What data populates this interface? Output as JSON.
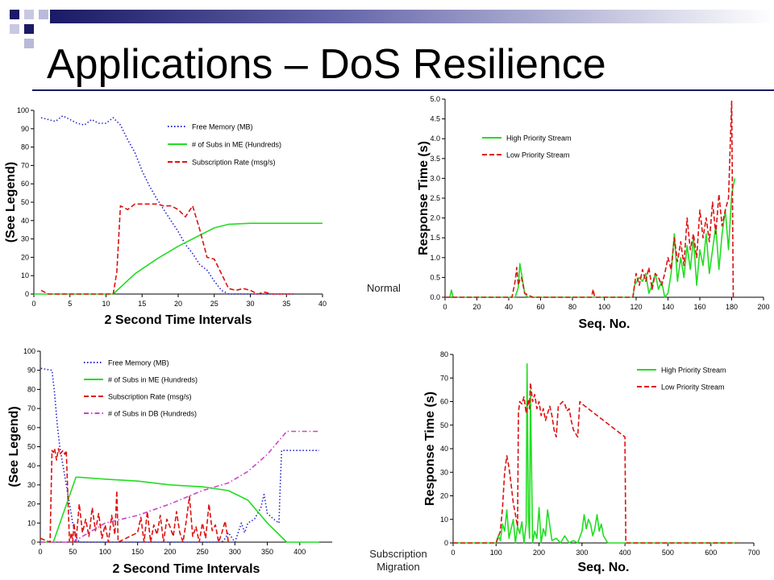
{
  "slide": {
    "title": "Applications – DoS Resilience",
    "label_normal": "Normal",
    "label_migration_line1": "Subscription",
    "label_migration_line2": "Migration"
  },
  "colors": {
    "blue": "#2323d0",
    "green": "#22dd22",
    "red": "#dd1111",
    "purple": "#cc44cc",
    "accent_dark": "#1a1a66",
    "accent_light": "#9999cc"
  },
  "chart_data": [
    {
      "id": "top-left",
      "type": "line",
      "xlabel": "2 Second Time Intervals",
      "ylabel": "(See Legend)",
      "xlim": [
        0,
        40
      ],
      "ylim": [
        0,
        100
      ],
      "xticks": [
        0,
        5,
        10,
        15,
        20,
        25,
        30,
        35,
        40
      ],
      "yticks": [
        0,
        10,
        20,
        30,
        40,
        50,
        60,
        70,
        80,
        90,
        100
      ],
      "legend_position": "top-right",
      "series": [
        {
          "name": "Free Memory (MB)",
          "color": "#2323d0",
          "dash": "dot",
          "x": [
            1,
            2,
            3,
            4,
            5,
            6,
            7,
            8,
            9,
            10,
            11,
            12,
            13,
            14,
            15,
            16,
            17,
            18,
            19,
            20,
            21,
            22,
            23,
            24,
            25,
            26,
            27,
            28,
            29,
            30,
            31,
            32,
            33,
            34,
            35,
            36
          ],
          "y": [
            96,
            95,
            94,
            97,
            95,
            93,
            92,
            95,
            93,
            93,
            96,
            92,
            84,
            77,
            67,
            59,
            52,
            46,
            40,
            34,
            27,
            22,
            16,
            13,
            7,
            2,
            0,
            0,
            0,
            0,
            0,
            0,
            0,
            0,
            0,
            0
          ]
        },
        {
          "name": "# of Subs in ME (Hundreds)",
          "color": "#22dd22",
          "dash": "solid",
          "x": [
            0,
            11,
            14,
            17,
            20,
            23,
            25,
            27,
            30,
            35,
            40
          ],
          "y": [
            0,
            0,
            11,
            19,
            26,
            32,
            36,
            38,
            38.5,
            38.5,
            38.5
          ]
        },
        {
          "name": "Subscription Rate (msg/s)",
          "color": "#dd1111",
          "dash": "dash",
          "x": [
            1,
            2,
            3,
            11,
            11.5,
            12,
            13,
            14,
            15,
            16,
            17,
            18,
            19,
            20,
            21,
            22,
            23,
            24,
            25,
            26,
            27,
            28,
            29,
            30,
            31,
            32,
            33,
            34,
            35,
            36
          ],
          "y": [
            2,
            0,
            0,
            0,
            12,
            48,
            46,
            49,
            49,
            49,
            49,
            48,
            48,
            46,
            42,
            48,
            35,
            20,
            19,
            11,
            3,
            2,
            3,
            2,
            0,
            1,
            0,
            0,
            0,
            0
          ]
        }
      ]
    },
    {
      "id": "top-right",
      "type": "line",
      "xlabel": "Seq. No.",
      "ylabel": "Response Time (s)",
      "xlim": [
        0,
        200
      ],
      "ylim": [
        0,
        5
      ],
      "xticks": [
        0,
        20,
        40,
        60,
        80,
        100,
        120,
        140,
        160,
        180,
        200
      ],
      "yticks": [
        0.0,
        0.5,
        1.0,
        1.5,
        2.0,
        2.5,
        3.0,
        3.5,
        4.0,
        4.5,
        5.0
      ],
      "legend_position": "top-left",
      "series": [
        {
          "name": "High Priority Stream",
          "color": "#22dd22",
          "dash": "solid",
          "x": [
            0,
            3,
            4,
            5,
            8,
            40,
            44,
            46,
            47,
            48,
            50,
            52,
            55,
            90,
            118,
            119,
            122,
            124,
            126,
            128,
            130,
            132,
            134,
            136,
            138,
            140,
            142,
            144,
            146,
            148,
            150,
            152,
            154,
            156,
            158,
            160,
            162,
            164,
            166,
            168,
            170,
            172,
            174,
            176,
            178,
            180,
            182
          ],
          "y": [
            0,
            0,
            0.18,
            0,
            0,
            0,
            0,
            0.25,
            0.85,
            0.6,
            0.1,
            0,
            0,
            0,
            0,
            0.3,
            0.5,
            0.4,
            0.6,
            0.1,
            0.3,
            0.6,
            0.2,
            0.4,
            0,
            0.1,
            0.6,
            1.6,
            0.4,
            1.0,
            0.5,
            1.3,
            0.7,
            1.5,
            0.3,
            1.2,
            0.8,
            1.6,
            0.6,
            1.2,
            1.8,
            0.7,
            1.6,
            2.2,
            1.2,
            2.6,
            3.0
          ]
        },
        {
          "name": "Low Priority Stream",
          "color": "#dd1111",
          "dash": "dash",
          "x": [
            0,
            40,
            42,
            44,
            45,
            46,
            47,
            48,
            50,
            55,
            92,
            93,
            94,
            100,
            118,
            120,
            122,
            124,
            126,
            128,
            130,
            132,
            134,
            136,
            138,
            140,
            142,
            144,
            146,
            148,
            150,
            152,
            154,
            156,
            158,
            160,
            162,
            164,
            166,
            168,
            170,
            172,
            174,
            176,
            178,
            180,
            181
          ],
          "y": [
            0,
            0,
            0,
            0.4,
            0.75,
            0.3,
            0.45,
            0.5,
            0.1,
            0,
            0,
            0.2,
            0,
            0,
            0,
            0.6,
            0.3,
            0.7,
            0.4,
            0.75,
            0.2,
            0.6,
            0.5,
            0.3,
            0.6,
            1.0,
            0.7,
            1.5,
            0.9,
            1.4,
            0.8,
            2.0,
            1.2,
            1.6,
            1.0,
            2.2,
            1.5,
            2.0,
            1.4,
            2.4,
            1.6,
            2.6,
            1.8,
            2.2,
            2.5,
            4.95,
            0
          ]
        }
      ]
    },
    {
      "id": "bottom-left",
      "type": "line",
      "xlabel": "2 Second Time Intervals",
      "ylabel": "(See Legend)",
      "xlim": [
        0,
        450
      ],
      "ylim": [
        0,
        100
      ],
      "xticks": [
        0,
        50,
        100,
        150,
        200,
        250,
        300,
        350,
        400
      ],
      "yticks": [
        0,
        10,
        20,
        30,
        40,
        50,
        60,
        70,
        80,
        90,
        100
      ],
      "legend_position": "top-right",
      "series": [
        {
          "name": "Free Memory (MB)",
          "color": "#2323d0",
          "dash": "dot",
          "x": [
            1,
            18,
            22,
            26,
            30,
            35,
            40,
            45,
            50,
            55,
            60,
            70,
            80,
            100,
            150,
            200,
            250,
            280,
            285,
            290,
            300,
            305,
            310,
            315,
            320,
            330,
            340,
            345,
            350,
            360,
            368,
            370,
            372,
            380,
            400,
            430
          ],
          "y": [
            91,
            90,
            78,
            62,
            50,
            40,
            30,
            20,
            10,
            3,
            0,
            0,
            0,
            0,
            0,
            0,
            0,
            0,
            2,
            5,
            0,
            5,
            10,
            5,
            10,
            12,
            18,
            25,
            15,
            12,
            10,
            30,
            48,
            48,
            48,
            48
          ]
        },
        {
          "name": "# of Subs in ME (Hundreds)",
          "color": "#22dd22",
          "dash": "solid",
          "x": [
            0,
            20,
            55,
            60,
            100,
            150,
            200,
            250,
            290,
            320,
            330,
            350,
            380,
            430
          ],
          "y": [
            0,
            0,
            34,
            34,
            33,
            32,
            30,
            29,
            27,
            22,
            18,
            10,
            0,
            0
          ]
        },
        {
          "name": "Subscription Rate (msg/s)",
          "color": "#dd1111",
          "dash": "dash",
          "x": [
            0,
            15,
            18,
            20,
            22,
            25,
            28,
            30,
            35,
            38,
            40,
            45,
            48,
            50,
            52,
            55,
            60,
            65,
            70,
            75,
            80,
            85,
            90,
            95,
            100,
            105,
            110,
            115,
            118,
            120,
            150,
            155,
            160,
            165,
            170,
            175,
            180,
            185,
            190,
            195,
            200,
            205,
            210,
            215,
            220,
            225,
            230,
            235,
            240,
            245,
            250,
            255,
            260,
            265,
            270,
            275,
            280,
            285,
            290
          ],
          "y": [
            2,
            0,
            48,
            47,
            49,
            43,
            49,
            46,
            48,
            46,
            48,
            0,
            5,
            0,
            10,
            0,
            20,
            5,
            12,
            3,
            18,
            6,
            15,
            2,
            9,
            0,
            14,
            4,
            27,
            0,
            5,
            13,
            0,
            16,
            0,
            9,
            4,
            14,
            0,
            12,
            8,
            3,
            16,
            5,
            0,
            11,
            24,
            3,
            8,
            0,
            10,
            2,
            20,
            6,
            9,
            0,
            5,
            11,
            0
          ]
        },
        {
          "name": "# of Subs in DB (Hundreds)",
          "color": "#cc44cc",
          "dash": "dashdot",
          "x": [
            0,
            50,
            100,
            150,
            200,
            250,
            290,
            320,
            350,
            380,
            400,
            430
          ],
          "y": [
            0,
            0,
            10,
            14,
            20,
            27,
            31,
            37,
            46,
            58,
            58,
            58
          ]
        }
      ]
    },
    {
      "id": "bottom-right",
      "type": "line",
      "xlabel": "Seq. No.",
      "ylabel": "Response Time (s)",
      "xlim": [
        0,
        700
      ],
      "ylim": [
        0,
        80
      ],
      "xticks": [
        0,
        100,
        200,
        300,
        400,
        500,
        600,
        700
      ],
      "yticks": [
        0,
        10,
        20,
        30,
        40,
        50,
        60,
        70,
        80
      ],
      "legend_position": "top-right",
      "series": [
        {
          "name": "High Priority Stream",
          "color": "#22dd22",
          "dash": "solid",
          "x": [
            0,
            100,
            105,
            110,
            115,
            120,
            125,
            130,
            135,
            140,
            145,
            150,
            155,
            160,
            165,
            170,
            172,
            175,
            178,
            180,
            185,
            190,
            195,
            200,
            205,
            210,
            215,
            220,
            230,
            240,
            250,
            260,
            270,
            280,
            290,
            300,
            305,
            310,
            315,
            320,
            325,
            330,
            335,
            340,
            345,
            350,
            360,
            370,
            380,
            400,
            500,
            660
          ],
          "y": [
            0,
            0,
            3,
            1,
            8,
            5,
            14,
            2,
            6,
            10,
            0,
            7,
            4,
            9,
            0,
            8,
            76,
            12,
            2,
            65,
            0,
            5,
            2,
            15,
            0,
            6,
            3,
            14,
            1,
            2,
            0,
            3,
            0,
            1,
            0,
            5,
            12,
            6,
            10,
            8,
            3,
            6,
            12,
            5,
            8,
            3,
            0,
            0,
            0,
            0,
            0,
            0
          ]
        },
        {
          "name": "Low Priority Stream",
          "color": "#dd1111",
          "dash": "dash",
          "x": [
            0,
            100,
            110,
            115,
            120,
            125,
            130,
            135,
            140,
            145,
            150,
            152,
            155,
            160,
            165,
            170,
            175,
            178,
            180,
            185,
            190,
            195,
            200,
            205,
            210,
            215,
            220,
            225,
            230,
            235,
            240,
            245,
            250,
            255,
            260,
            265,
            270,
            275,
            280,
            290,
            295,
            300,
            350,
            400,
            402,
            410,
            500,
            660
          ],
          "y": [
            0,
            0,
            5,
            15,
            30,
            37,
            32,
            25,
            17,
            12,
            7,
            55,
            60,
            59,
            62,
            55,
            61,
            57,
            68,
            60,
            63,
            57,
            60,
            54,
            57,
            52,
            55,
            58,
            54,
            48,
            45,
            58,
            59,
            60,
            59,
            56,
            57,
            52,
            48,
            45,
            60,
            59,
            52,
            45,
            0,
            0,
            0,
            0
          ]
        }
      ]
    }
  ]
}
